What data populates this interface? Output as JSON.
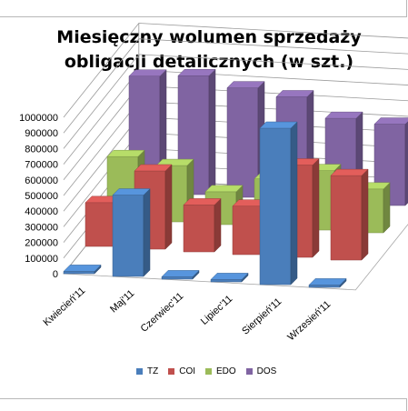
{
  "chart_data": {
    "type": "bar",
    "title_lines": [
      "Miesięczny wolumen sprzedaży",
      "obligacji detalicznych (w szt.)"
    ],
    "categories": [
      "Kwiecień'11",
      "Maj'11",
      "Czerwiec'11",
      "Lipiec'11",
      "Sierpień'11",
      "Wrzesień'11"
    ],
    "series": [
      {
        "name": "TZ",
        "color": "#4a7ebb",
        "values": [
          15000,
          520000,
          15000,
          15000,
          1000000,
          15000
        ]
      },
      {
        "name": "COI",
        "color": "#c0504d",
        "values": [
          280000,
          500000,
          300000,
          310000,
          590000,
          540000
        ]
      },
      {
        "name": "EDO",
        "color": "#9bbb59",
        "values": [
          400000,
          360000,
          210000,
          310000,
          380000,
          280000
        ]
      },
      {
        "name": "DOS",
        "color": "#8064a2",
        "values": [
          740000,
          760000,
          700000,
          660000,
          540000,
          520000
        ]
      }
    ],
    "y_ticks": [
      "0",
      "100000",
      "200000",
      "300000",
      "400000",
      "500000",
      "600000",
      "700000",
      "800000",
      "900000",
      "1000000"
    ],
    "ylim": [
      0,
      1000000
    ],
    "grid": true,
    "legend_position": "bottom"
  }
}
